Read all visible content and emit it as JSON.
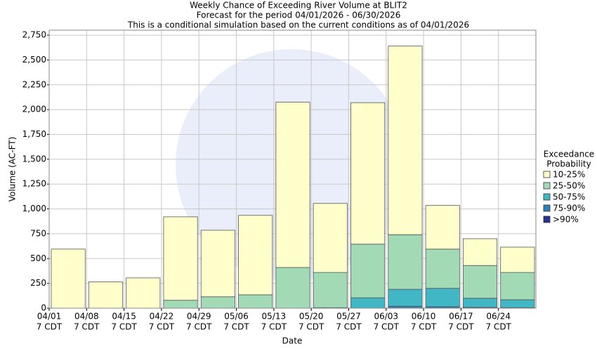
{
  "chart_data": {
    "type": "stacked_bar",
    "title": "Weekly Chance of Exceeding River Volume at BLIT2",
    "subtitle": [
      "Forecast for the period 04/01/2026 - 06/30/2026",
      "This is a conditional simulation based on the current conditions as of 04/01/2026"
    ],
    "x_label": "Date",
    "y_label": "Volume (AC-FT)",
    "categories": [
      "04/01",
      "04/08",
      "04/15",
      "04/22",
      "04/29",
      "05/06",
      "05/13",
      "05/20",
      "05/27",
      "06/03",
      "06/10",
      "06/17",
      "06/24"
    ],
    "category_sublabel": "7 CDT",
    "legend_title": [
      "Exceedance",
      "Probability"
    ],
    "series": [
      {
        "name": ">90%",
        "color": "#253494",
        "values": [
          0,
          0,
          0,
          0,
          0,
          0,
          0,
          0,
          0,
          0,
          0,
          0,
          0
        ]
      },
      {
        "name": "75-90%",
        "color": "#2c7fb8",
        "values": [
          0,
          0,
          0,
          0,
          0,
          0,
          0,
          0,
          0,
          20,
          15,
          8,
          5
        ]
      },
      {
        "name": "50-75%",
        "color": "#41b6c4",
        "values": [
          0,
          0,
          0,
          0,
          0,
          0,
          0,
          5,
          105,
          170,
          185,
          92,
          80
        ]
      },
      {
        "name": "25-50%",
        "color": "#a1dab4",
        "values": [
          0,
          0,
          0,
          80,
          115,
          135,
          410,
          355,
          540,
          550,
          395,
          330,
          275
        ]
      },
      {
        "name": "10-25%",
        "color": "#ffffcc",
        "values": [
          595,
          265,
          305,
          840,
          670,
          800,
          1665,
          695,
          1425,
          1900,
          440,
          270,
          255
        ]
      }
    ],
    "ylim": [
      0,
      2800
    ],
    "yticks": [
      0,
      250,
      500,
      750,
      {
        "value": 1000,
        "label": "1,000"
      },
      {
        "value": 1250,
        "label": "1,250"
      },
      {
        "value": 1500,
        "label": "1,500"
      },
      {
        "value": 1750,
        "label": "1,750"
      },
      {
        "value": 2000,
        "label": "2,000"
      },
      {
        "value": 2250,
        "label": "2,250"
      },
      {
        "value": 2500,
        "label": "2,500"
      },
      {
        "value": 2750,
        "label": "2,750"
      }
    ],
    "grid": true
  }
}
